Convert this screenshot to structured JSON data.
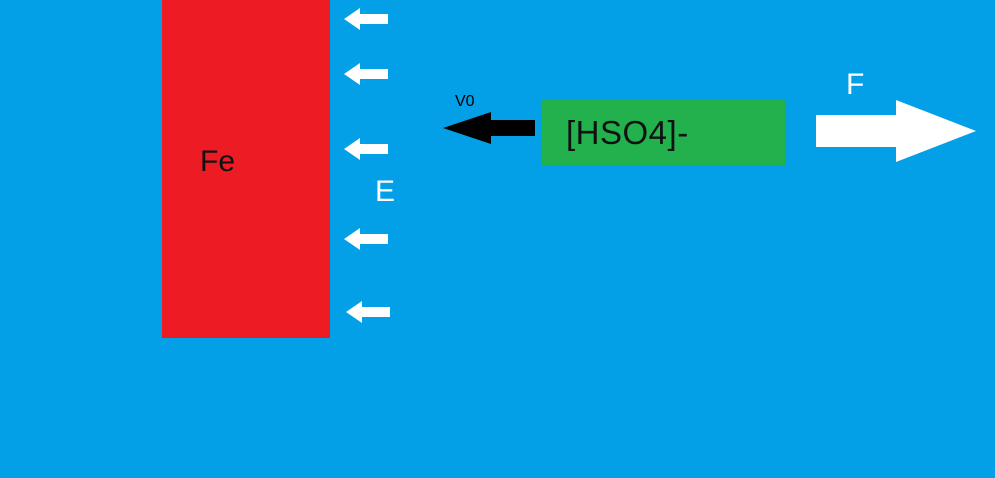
{
  "diagram": {
    "plate_label": "Fe",
    "ion_label": "[HSO4]-",
    "field_label": "E",
    "velocity_label": "V0",
    "force_label": "F"
  },
  "colors": {
    "background": "#03A0E8",
    "plate": "#ED1C24",
    "ion_box": "#22B14C",
    "field_arrows": "#FFFFFF",
    "velocity_arrow": "#000000",
    "force_arrow": "#FFFFFF"
  },
  "icons": {
    "field_arrow": "arrow-left-icon",
    "velocity_arrow": "arrow-left-icon",
    "force_arrow": "arrow-right-icon"
  }
}
